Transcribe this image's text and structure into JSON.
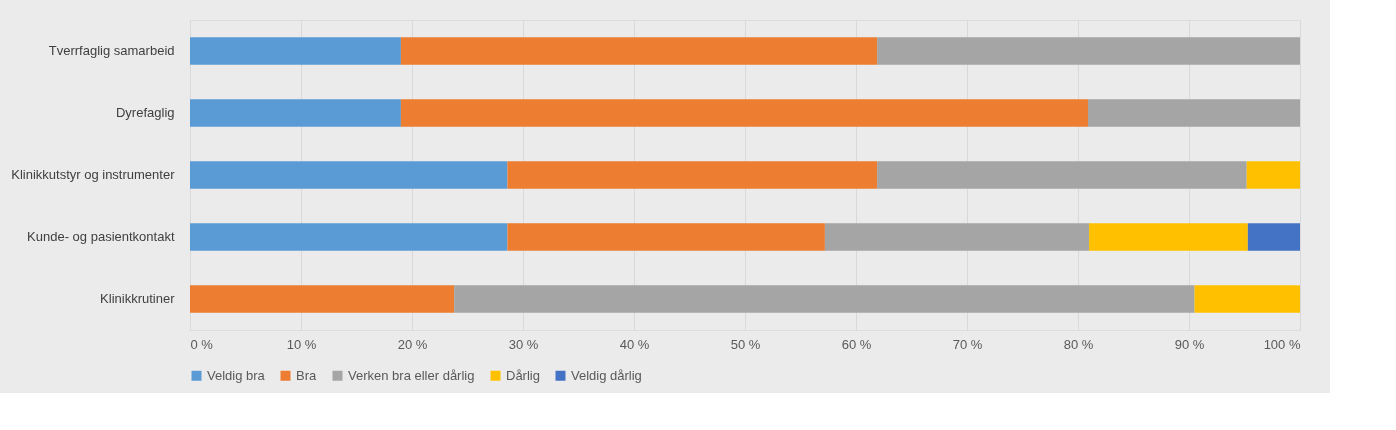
{
  "chart_data": {
    "type": "bar",
    "orientation": "horizontal",
    "stacked": true,
    "categories": [
      "Tverrfaglig samarbeid",
      "Dyrefaglig",
      "Klinikkutstyr og instrumenter",
      "Kunde- og pasientkontakt",
      "Klinikkrutiner"
    ],
    "series": [
      {
        "name": "Veldig bra",
        "color": "#5b9bd5",
        "values": [
          19.0,
          19.0,
          28.6,
          28.6,
          0
        ]
      },
      {
        "name": "Bra",
        "color": "#ed7d31",
        "values": [
          42.9,
          61.9,
          33.3,
          28.6,
          23.8
        ]
      },
      {
        "name": "Verken bra eller dårlig",
        "color": "#a5a5a5",
        "values": [
          38.1,
          19.1,
          33.3,
          23.8,
          66.7
        ]
      },
      {
        "name": "Dårlig",
        "color": "#ffc000",
        "values": [
          0,
          0,
          4.8,
          14.3,
          9.5
        ]
      },
      {
        "name": "Veldig dårlig",
        "color": "#4472c4",
        "values": [
          0,
          0,
          0,
          4.7,
          0
        ]
      }
    ],
    "xlim": [
      0,
      100
    ],
    "xticks": [
      {
        "value": 0,
        "label": "0 %"
      },
      {
        "value": 10,
        "label": "10 %"
      },
      {
        "value": 20,
        "label": "20 %"
      },
      {
        "value": 30,
        "label": "30 %"
      },
      {
        "value": 40,
        "label": "40 %"
      },
      {
        "value": 50,
        "label": "50 %"
      },
      {
        "value": 60,
        "label": "60 %"
      },
      {
        "value": 70,
        "label": "70 %"
      },
      {
        "value": 80,
        "label": "80 %"
      },
      {
        "value": 90,
        "label": "90 %"
      },
      {
        "value": 100,
        "label": "100 %"
      }
    ],
    "grid": "x",
    "legend": "bottom"
  }
}
